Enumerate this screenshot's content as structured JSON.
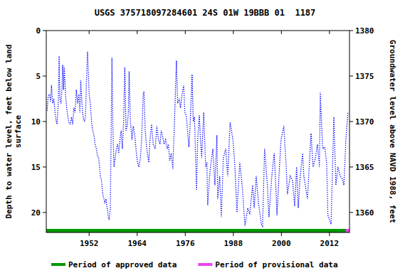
{
  "chart_data": {
    "type": "line",
    "title": "USGS 375718097284601 24S 01W 19BBB 01  1187",
    "y_label": "Depth to water level, feet below land surface",
    "y2_label": "Groundwater level above NAVD 1988, feet",
    "xlim": [
      1941.3,
      2017.0
    ],
    "xticks": [
      1952,
      1964,
      1976,
      1988,
      2000,
      2012
    ],
    "ylim": [
      22.2,
      0
    ],
    "yticks": [
      0,
      5,
      10,
      15,
      20
    ],
    "y2lim": [
      1357.8,
      1380
    ],
    "y2ticks": [
      1360,
      1365,
      1370,
      1375,
      1380
    ],
    "grid": false,
    "legend": "bottom",
    "x": [
      1941.5,
      1941.8,
      1942.1,
      1942.4,
      1942.6,
      1942.9,
      1943.2,
      1943.5,
      1943.8,
      1944.0,
      1944.3,
      1944.5,
      1944.7,
      1945.0,
      1945.2,
      1945.4,
      1945.6,
      1945.8,
      1946.1,
      1946.4,
      1946.7,
      1947.0,
      1947.3,
      1947.6,
      1947.9,
      1948.2,
      1948.5,
      1948.8,
      1949.1,
      1949.4,
      1949.7,
      1949.9,
      1950.2,
      1950.5,
      1950.8,
      1951.1,
      1951.3,
      1951.6,
      1951.8,
      1952.0,
      1952.3,
      1952.6,
      1952.9,
      1953.2,
      1953.5,
      1953.8,
      1954.1,
      1954.4,
      1954.8,
      1955.1,
      1955.4,
      1955.7,
      1955.9,
      1956.2,
      1956.5,
      1956.8,
      1957.0,
      1957.3,
      1957.7,
      1957.9,
      1958.2,
      1958.5,
      1958.8,
      1959.1,
      1959.4,
      1959.7,
      1960.0,
      1960.3,
      1960.6,
      1960.9,
      1961.2,
      1961.5,
      1961.8,
      1962.0,
      1962.3,
      1962.7,
      1963.0,
      1963.4,
      1963.8,
      1964.1,
      1964.4,
      1964.8,
      1965.1,
      1965.5,
      1965.7,
      1966.0,
      1966.4,
      1966.9,
      1967.2,
      1967.6,
      1968.0,
      1968.5,
      1968.9,
      1969.3,
      1969.7,
      1970.0,
      1970.3,
      1970.7,
      1971.1,
      1971.5,
      1971.8,
      1972.1,
      1972.5,
      1972.9,
      1973.3,
      1973.8,
      1974.1,
      1974.5,
      1974.8,
      1975.2,
      1975.6,
      1975.9,
      1976.3,
      1976.9,
      1977.2,
      1977.7,
      1978.0,
      1978.3,
      1978.8,
      1979.1,
      1979.5,
      1979.8,
      1980.1,
      1980.6,
      1981.1,
      1981.4,
      1981.6,
      1982.0,
      1982.3,
      1982.9,
      1983.4,
      1983.9,
      1984.1,
      1984.6,
      1985.0,
      1985.5,
      1986.1,
      1986.6,
      1987.2,
      1987.9,
      1988.4,
      1988.9,
      1989.6,
      1990.2,
      1990.9,
      1991.6,
      1992.1,
      1992.8,
      1993.2,
      1993.7,
      1994.3,
      1995.0,
      1995.3,
      1995.8,
      1996.5,
      1996.9,
      1997.6,
      1998.2,
      1998.7,
      1998.9,
      1999.4,
      1999.9,
      2000.6,
      2001.2,
      2001.5,
      2002.2,
      2002.8,
      2003.3,
      2003.8,
      2004.2,
      2004.7,
      2005.3,
      2005.6,
      2006.5,
      2007.4,
      2007.9,
      2008.5,
      2009.0,
      2009.5,
      2009.7,
      2010.3,
      2010.8,
      2011.3,
      2011.6,
      2012.4,
      2013.1,
      2013.6,
      2014.1,
      2014.7,
      2015.2,
      2015.6,
      2016.1,
      2016.6
    ],
    "series": [
      {
        "color": "#0000ff",
        "line_style": "dotted",
        "values": [
          8.8,
          7.2,
          7.0,
          7.8,
          6.0,
          8.0,
          7.5,
          9.0,
          10.0,
          10.3,
          8.0,
          2.8,
          7.5,
          8.0,
          6.5,
          3.8,
          6.5,
          4.0,
          7.0,
          8.5,
          9.5,
          10.2,
          10.3,
          9.5,
          10.3,
          8.5,
          9.0,
          6.5,
          8.0,
          7.0,
          9.0,
          5.5,
          8.0,
          9.5,
          10.0,
          9.5,
          6.0,
          2.3,
          4.5,
          7.0,
          8.0,
          10.0,
          11.0,
          11.5,
          12.5,
          13.0,
          13.8,
          14.0,
          16.0,
          16.5,
          18.0,
          18.5,
          19.0,
          18.5,
          19.5,
          20.5,
          20.8,
          19.5,
          3.0,
          10.0,
          15.0,
          14.0,
          13.0,
          12.5,
          13.5,
          12.0,
          11.0,
          13.0,
          10.0,
          4.0,
          11.0,
          10.5,
          9.0,
          4.5,
          10.0,
          12.0,
          10.5,
          11.5,
          13.5,
          14.5,
          15.0,
          14.0,
          12.0,
          7.0,
          6.7,
          11.0,
          13.0,
          14.5,
          12.0,
          10.3,
          12.5,
          13.0,
          10.5,
          12.0,
          12.5,
          11.0,
          11.5,
          12.5,
          12.0,
          13.0,
          12.5,
          14.3,
          13.5,
          15.2,
          10.0,
          3.3,
          8.0,
          7.5,
          8.5,
          7.0,
          6.0,
          9.0,
          9.5,
          12.8,
          10.5,
          4.8,
          10.0,
          9.5,
          17.5,
          12.0,
          9.3,
          12.0,
          14.0,
          9.0,
          15.0,
          14.5,
          19.2,
          16.5,
          15.0,
          13.0,
          17.0,
          11.5,
          18.5,
          16.0,
          20.5,
          14.0,
          13.0,
          16.0,
          10.1,
          12.0,
          15.0,
          20.0,
          14.5,
          17.0,
          21.5,
          19.5,
          20.2,
          17.0,
          19.5,
          16.0,
          19.0,
          21.3,
          21.5,
          13.0,
          17.0,
          20.5,
          16.0,
          13.5,
          18.0,
          20.3,
          16.0,
          12.0,
          10.5,
          15.0,
          18.0,
          16.0,
          16.5,
          19.3,
          15.0,
          19.5,
          16.0,
          13.5,
          16.0,
          18.5,
          11.3,
          15.0,
          14.0,
          12.5,
          15.0,
          6.8,
          13.0,
          12.8,
          14.5,
          20.3,
          21.3,
          9.5,
          17.0,
          15.0,
          16.0,
          16.3,
          17.0,
          12.0,
          9.0
        ]
      }
    ],
    "periods": [
      {
        "name": "Period of approved data",
        "color": "#009900",
        "start": 1941.3,
        "end": 2016.1
      },
      {
        "name": "Period of provisional data",
        "color": "#ee44ee",
        "start": 2016.1,
        "end": 2017.0
      }
    ]
  }
}
